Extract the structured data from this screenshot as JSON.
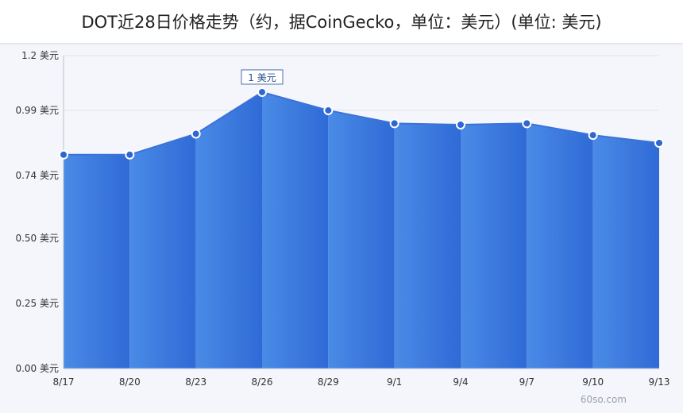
{
  "title": "DOT近28日价格走势（约，据CoinGecko，单位：美元）(单位: 美元)",
  "watermark": "60so.com",
  "colors": {
    "area_top": "#4a8be6",
    "area_bottom": "#2f6ad6",
    "line": "#3b72d9",
    "grid": "#dfe3ea",
    "axis": "#b9c0cc",
    "marker_fill": "#2f66d2",
    "label_text": "#333333"
  },
  "chart_data": {
    "type": "area",
    "title": "DOT近28日价格走势（约，据CoinGecko，单位：美元）(单位: 美元)",
    "x": [
      "8/17",
      "8/20",
      "8/23",
      "8/26",
      "8/29",
      "9/1",
      "9/4",
      "9/7",
      "9/10",
      "9/13"
    ],
    "series": [
      {
        "values": [
          0.82,
          0.82,
          0.9,
          1.06,
          0.99,
          0.94,
          0.935,
          0.94,
          0.895,
          0.865
        ]
      }
    ],
    "y_ticks": [
      0.0,
      0.25,
      0.5,
      0.74,
      0.99,
      1.2
    ],
    "y_tick_labels": [
      "0.00 美元",
      "0.25 美元",
      "0.50 美元",
      "0.74 美元",
      "0.99 美元",
      "1.2 美元"
    ],
    "ylim": [
      0,
      1.2
    ],
    "grid": true,
    "annotation": {
      "x": "8/26",
      "text": "1 美元"
    }
  }
}
